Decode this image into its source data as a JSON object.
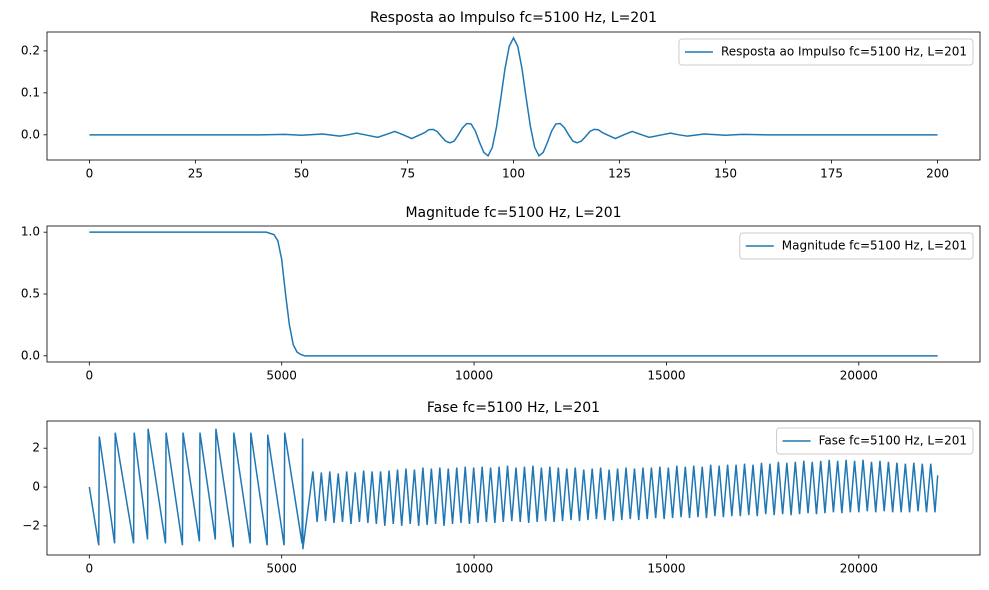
{
  "chart_data": [
    {
      "type": "line",
      "title": "Resposta ao Impulso fc=5100 Hz, L=201",
      "x": [
        0,
        40,
        46,
        50,
        55,
        59,
        61,
        63,
        65,
        68,
        70,
        72,
        74,
        76,
        79,
        80,
        81,
        82,
        83,
        84,
        85,
        86,
        87,
        88,
        89,
        90,
        91,
        92,
        93,
        94,
        95,
        96,
        97,
        98,
        99,
        100,
        101,
        102,
        103,
        104,
        105,
        106,
        107,
        108,
        109,
        110,
        111,
        112,
        113,
        114,
        115,
        116,
        117,
        118,
        119,
        120,
        121,
        124,
        126,
        128,
        130,
        132,
        135,
        137,
        139,
        141,
        145,
        150,
        154,
        160,
        200
      ],
      "series": [
        {
          "name": "Resposta ao Impulso fc=5100 Hz, L=201",
          "color": "#1f77b4",
          "values": [
            0,
            0,
            0.001,
            -0.001,
            0.002,
            -0.003,
            0,
            0.004,
            0,
            -0.006,
            0.001,
            0.008,
            0,
            -0.009,
            0.005,
            0.012,
            0.013,
            0.008,
            -0.004,
            -0.015,
            -0.019,
            -0.015,
            0,
            0.017,
            0.027,
            0.026,
            0.009,
            -0.018,
            -0.042,
            -0.05,
            -0.03,
            0.019,
            0.087,
            0.158,
            0.211,
            0.231,
            0.211,
            0.158,
            0.087,
            0.019,
            -0.03,
            -0.05,
            -0.042,
            -0.018,
            0.009,
            0.026,
            0.027,
            0.017,
            0,
            -0.015,
            -0.019,
            -0.015,
            -0.004,
            0.008,
            0.013,
            0.012,
            0.005,
            -0.009,
            0,
            0.008,
            0.001,
            -0.006,
            0,
            0.004,
            0,
            -0.003,
            0.002,
            -0.001,
            0.001,
            0,
            0
          ]
        }
      ],
      "xlim": [
        -10,
        210
      ],
      "xticks": [
        0,
        25,
        50,
        75,
        100,
        125,
        150,
        175,
        200
      ],
      "ylim": [
        -0.06,
        0.245
      ],
      "yticks": [
        {
          "value": 0,
          "label": "0.0"
        },
        0.1,
        0.2
      ],
      "legend": "upper right"
    },
    {
      "type": "line",
      "title": "Magnitude fc=5100 Hz, L=201",
      "x": [
        0,
        4600,
        4800,
        4900,
        5000,
        5100,
        5200,
        5300,
        5400,
        5500,
        5600,
        22050
      ],
      "series": [
        {
          "name": "Magnitude fc=5100 Hz, L=201",
          "color": "#1f77b4",
          "values": [
            1,
            1,
            0.98,
            0.93,
            0.78,
            0.5,
            0.25,
            0.09,
            0.03,
            0.01,
            0,
            0
          ]
        }
      ],
      "xlim": [
        -1100,
        23150
      ],
      "xticks": [
        0,
        5000,
        10000,
        15000,
        20000
      ],
      "ylim": [
        -0.05,
        1.05
      ],
      "yticks": [
        {
          "value": 0,
          "label": "0.0"
        },
        0.5,
        {
          "value": 1,
          "label": "1.0"
        }
      ],
      "legend": "upper right"
    },
    {
      "type": "line",
      "title": "Fase fc=5100 Hz, L=201",
      "x": [
        0,
        245,
        260,
        658,
        673,
        1151,
        1166,
        1513,
        1528,
        1980,
        1995,
        2420,
        2435,
        2861,
        2876,
        3275,
        3290,
        3741,
        3756,
        4182,
        4197,
        4622,
        4637,
        5063,
        5078,
        5529,
        5544,
        5550,
        5810,
        5920,
        6030,
        6140,
        6250,
        6360,
        6470,
        6580,
        6690,
        6800,
        6910,
        7020,
        7130,
        7240,
        7350,
        7460,
        7570,
        7680,
        7790,
        7900,
        8010,
        8120,
        8230,
        8340,
        8450,
        8560,
        8670,
        8780,
        8890,
        9000,
        9110,
        9220,
        9330,
        9440,
        9550,
        9660,
        9770,
        9880,
        9990,
        10100,
        10210,
        10320,
        10430,
        10540,
        10650,
        10760,
        10870,
        10980,
        11090,
        11200,
        11310,
        11420,
        11530,
        11640,
        11750,
        11860,
        11970,
        12080,
        12190,
        12300,
        12410,
        12520,
        12630,
        12740,
        12850,
        12960,
        13070,
        13180,
        13290,
        13400,
        13510,
        13620,
        13730,
        13840,
        13950,
        14060,
        14170,
        14280,
        14390,
        14500,
        14610,
        14720,
        14830,
        14940,
        15050,
        15160,
        15270,
        15380,
        15490,
        15600,
        15710,
        15820,
        15930,
        16040,
        16150,
        16260,
        16370,
        16480,
        16590,
        16700,
        16810,
        16920,
        17030,
        17140,
        17250,
        17360,
        17470,
        17580,
        17690,
        17800,
        17910,
        18020,
        18130,
        18240,
        18350,
        18460,
        18570,
        18680,
        18790,
        18900,
        19010,
        19120,
        19230,
        19340,
        19450,
        19560,
        19670,
        19780,
        19890,
        20000,
        20110,
        20220,
        20330,
        20440,
        20550,
        20660,
        20770,
        20880,
        20990,
        21100,
        21210,
        21320,
        21430,
        21540,
        21650,
        21760,
        21870,
        21980,
        22050
      ],
      "series": [
        {
          "name": "Fase fc=5100 Hz, L=201",
          "color": "#1f77b4",
          "values": [
            0,
            -3.0,
            2.6,
            -2.9,
            2.8,
            -2.9,
            2.8,
            -2.7,
            3.0,
            -2.9,
            2.8,
            -3.0,
            2.8,
            -2.8,
            2.8,
            -2.7,
            3.0,
            -3.1,
            2.8,
            -2.9,
            2.8,
            -3.0,
            2.7,
            -3.0,
            2.8,
            -2.9,
            2.5,
            -3.2,
            0.8,
            -1.8,
            0.75,
            -1.75,
            0.8,
            -1.85,
            0.7,
            -1.8,
            0.8,
            -1.9,
            0.75,
            -1.8,
            0.85,
            -1.85,
            0.8,
            -1.9,
            0.8,
            -2.0,
            0.85,
            -1.9,
            0.9,
            -2.0,
            0.95,
            -1.9,
            0.9,
            -2.0,
            1.0,
            -1.95,
            0.95,
            -1.9,
            1.0,
            -2.0,
            0.95,
            -1.9,
            1.0,
            -1.85,
            1.05,
            -1.9,
            1.0,
            -1.85,
            1.05,
            -1.8,
            1.0,
            -1.85,
            1.05,
            -1.8,
            1.1,
            -1.75,
            1.0,
            -1.8,
            1.05,
            -1.85,
            1.1,
            -1.8,
            1.0,
            -1.75,
            1.05,
            -1.8,
            1.0,
            -1.75,
            0.95,
            -1.7,
            1.0,
            -1.75,
            0.9,
            -1.7,
            0.95,
            -1.65,
            1.0,
            -1.7,
            0.9,
            -1.75,
            0.95,
            -1.7,
            1.0,
            -1.65,
            0.95,
            -1.7,
            1.0,
            -1.65,
            1.0,
            -1.6,
            1.05,
            -1.65,
            1.0,
            -1.6,
            1.1,
            -1.55,
            1.05,
            -1.6,
            1.1,
            -1.55,
            1.05,
            -1.6,
            1.15,
            -1.5,
            1.1,
            -1.55,
            1.15,
            -1.5,
            1.15,
            -1.5,
            1.2,
            -1.45,
            1.15,
            -1.5,
            1.25,
            -1.4,
            1.2,
            -1.45,
            1.3,
            -1.4,
            1.25,
            -1.45,
            1.3,
            -1.4,
            1.35,
            -1.35,
            1.3,
            -1.4,
            1.35,
            -1.35,
            1.4,
            -1.3,
            1.35,
            -1.35,
            1.4,
            -1.3,
            1.35,
            -1.3,
            1.4,
            -1.25,
            1.3,
            -1.3,
            1.35,
            -1.25,
            1.3,
            -1.3,
            1.25,
            -1.3,
            1.2,
            -1.3,
            1.25,
            -1.25,
            1.2,
            -1.3,
            1.2,
            -1.3,
            0.6
          ]
        }
      ],
      "xlim": [
        -1100,
        23150
      ],
      "xticks": [
        0,
        5000,
        10000,
        15000,
        20000
      ],
      "ylim": [
        -3.5,
        3.4
      ],
      "yticks": [
        {
          "value": -2,
          "label": "−2"
        },
        0,
        2
      ],
      "legend": "upper right"
    }
  ]
}
